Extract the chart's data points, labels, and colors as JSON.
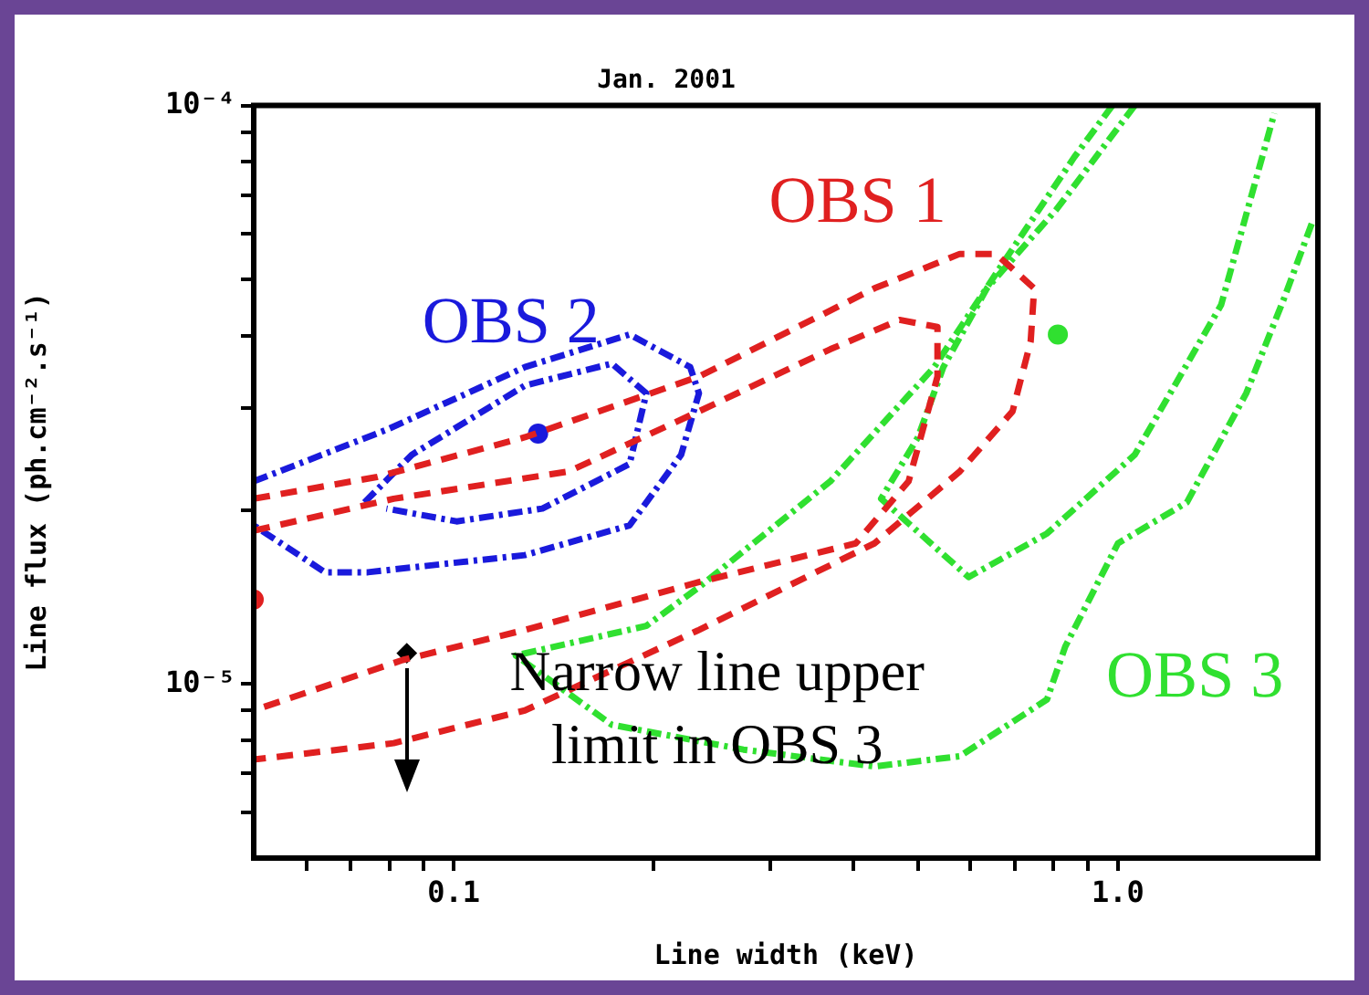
{
  "chart_data": {
    "type": "line",
    "title": "Jan. 2001",
    "xlabel": "Line width (keV)",
    "ylabel": "Line flux (ph.cm⁻².s⁻¹)",
    "log": "xy",
    "grid": false,
    "legend": false,
    "xlim": [
      0.05,
      2
    ],
    "ylim": [
      5e-06,
      0.0001
    ],
    "xticks": [
      {
        "value": 0.06,
        "label": null
      },
      {
        "value": 0.07,
        "label": null
      },
      {
        "value": 0.08,
        "label": null
      },
      {
        "value": 0.09,
        "label": null
      },
      0.1,
      {
        "value": 0.2,
        "label": null
      },
      {
        "value": 0.3,
        "label": null
      },
      {
        "value": 0.4,
        "label": null
      },
      {
        "value": 0.5,
        "label": null
      },
      {
        "value": 0.6,
        "label": null
      },
      {
        "value": 0.7,
        "label": null
      },
      {
        "value": 0.8,
        "label": null
      },
      {
        "value": 0.9,
        "label": null
      },
      {
        "value": 1,
        "label": "1.0"
      }
    ],
    "yticks": [
      {
        "value": 6e-06,
        "label": null
      },
      {
        "value": 7e-06,
        "label": null
      },
      {
        "value": 8e-06,
        "label": null
      },
      {
        "value": 9e-06,
        "label": null
      },
      {
        "value": 1e-05,
        "label": "10⁻⁵"
      },
      {
        "value": 2e-05,
        "label": null
      },
      {
        "value": 3e-05,
        "label": null
      },
      {
        "value": 4e-05,
        "label": null
      },
      {
        "value": 5e-05,
        "label": null
      },
      {
        "value": 6e-05,
        "label": null
      },
      {
        "value": 7e-05,
        "label": null
      },
      {
        "value": 8e-05,
        "label": null
      },
      {
        "value": 9e-05,
        "label": null
      },
      {
        "value": 0.0001,
        "label": "10⁻⁴"
      }
    ],
    "series": [
      {
        "name": "OBS 1",
        "color": "#e02020",
        "line_style": "dashed",
        "x": [
          0.05,
          0.0767,
          0.128,
          0.234,
          0.43,
          0.578,
          0.655,
          0.748,
          0.739,
          0.694,
          0.578,
          0.43,
          0.234,
          0.128,
          0.0812,
          0.05
        ],
        "values": [
          2.09e-05,
          2.28e-05,
          2.67e-05,
          3.4e-05,
          4.83e-05,
          5.54e-05,
          5.54e-05,
          4.83e-05,
          3.91e-05,
          2.96e-05,
          2.33e-05,
          1.75e-05,
          1.24e-05,
          9e-06,
          7.9e-06,
          7.4e-06
        ]
      },
      {
        "color": "#e02020",
        "line_style": "dashed",
        "x": [
          0.05,
          0.0812,
          0.149,
          0.234,
          0.369,
          0.469,
          0.535,
          0.535,
          0.484,
          0.403,
          0.234,
          0.128,
          0.0838,
          0.05
        ],
        "values": [
          1.84e-05,
          2.09e-05,
          2.33e-05,
          2.96e-05,
          3.79e-05,
          4.26e-05,
          4.14e-05,
          3.4e-05,
          2.24e-05,
          1.75e-05,
          1.5e-05,
          1.24e-05,
          1.1e-05,
          9e-06
        ]
      },
      {
        "name": "OBS 2",
        "color": "#1a1adc",
        "line_style": "dotted",
        "x": [
          0.05,
          0.0792,
          0.128,
          0.184,
          0.227,
          0.234,
          0.22,
          0.184,
          0.128,
          0.0743,
          0.064,
          0.055,
          0.05
        ],
        "values": [
          2.24e-05,
          2.75e-05,
          3.53e-05,
          4.02e-05,
          3.53e-05,
          3.18e-05,
          2.49e-05,
          1.88e-05,
          1.67e-05,
          1.56e-05,
          1.56e-05,
          1.75e-05,
          1.88e-05
        ]
      },
      {
        "color": "#1a1adc",
        "line_style": "dotted",
        "x": [
          0.0734,
          0.0865,
          0.128,
          0.173,
          0.195,
          0.184,
          0.136,
          0.101,
          0.0792
        ],
        "values": [
          2.06e-05,
          2.49e-05,
          3.28e-05,
          3.58e-05,
          3.18e-05,
          2.4e-05,
          2.01e-05,
          1.91e-05,
          2.01e-05
        ]
      },
      {
        "name": "OBS 3",
        "color": "#30e030",
        "line_style": "dotted",
        "x": [
          0.981,
          0.86,
          0.672,
          0.529,
          0.369,
          0.234,
          0.195,
          0.124,
          0.173,
          0.273,
          0.43,
          0.578,
          0.782,
          0.833,
          1.0,
          1.27,
          1.56,
          1.78,
          1.96
        ],
        "values": [
          0.0001,
          8.15e-05,
          5.35e-05,
          3.53e-05,
          2.24e-05,
          1.47e-05,
          1.26e-05,
          1.12e-05,
          8.5e-06,
          7.7e-06,
          7.2e-06,
          7.5e-06,
          9.4e-06,
          1.16e-05,
          1.75e-05,
          2.06e-05,
          3.18e-05,
          4.65e-05,
          6.27e-05
        ]
      },
      {
        "color": "#30e030",
        "line_style": "dotted",
        "x": [
          1.06,
          0.807,
          0.635,
          0.546,
          0.5,
          0.44,
          0.596,
          0.782,
          1.06,
          1.43,
          1.72
        ],
        "values": [
          0.0001,
          6.6e-05,
          4.83e-05,
          3.53e-05,
          2.67e-05,
          2.09e-05,
          1.53e-05,
          1.82e-05,
          2.49e-05,
          4.52e-05,
          9.7e-05
        ]
      },
      {
        "type": "scatter",
        "color": "#e02020",
        "marker": "circle",
        "x": [
          0.05
        ],
        "values": [
          1.4e-05
        ]
      },
      {
        "type": "scatter",
        "color": "#1a1adc",
        "marker": "circle",
        "x": [
          0.134
        ],
        "values": [
          2.71e-05
        ]
      },
      {
        "type": "scatter",
        "color": "#30e030",
        "marker": "circle",
        "x": [
          0.812
        ],
        "values": [
          4.02e-05
        ]
      },
      {
        "type": "scatter",
        "color": "#000000",
        "marker": "diamond",
        "x": [
          0.085
        ],
        "values": [
          1.13e-05
        ]
      }
    ],
    "annotations": [
      {
        "text": "Narrow line upper limit in OBS 3",
        "x": 0.085,
        "y": 1.13e-05
      }
    ]
  }
}
